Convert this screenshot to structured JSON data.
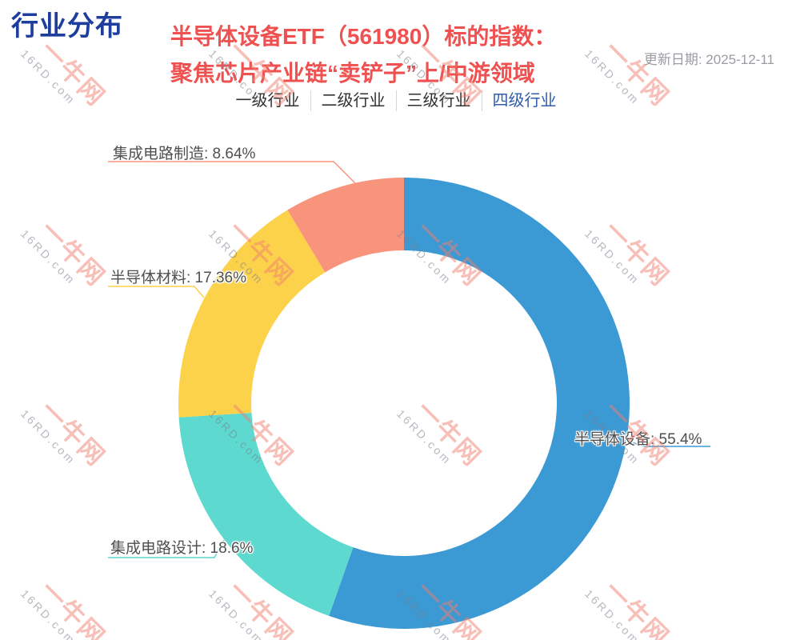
{
  "page": {
    "title": "行业分布",
    "subtitle_line1": "半导体设备ETF（561980）标的指数：",
    "subtitle_line2": "聚焦芯片产业链“卖铲子”上/中游领域",
    "update_date": "更新日期: 2025-12-11"
  },
  "tabs": {
    "items": [
      {
        "label": "一级行业",
        "active": false
      },
      {
        "label": "二级行业",
        "active": false
      },
      {
        "label": "三级行业",
        "active": false
      },
      {
        "label": "四级行业",
        "active": true
      }
    ],
    "active_color": "#2f5cad"
  },
  "chart_data": {
    "type": "pie",
    "title": "行业分布",
    "donut": true,
    "start_angle_deg": 0,
    "direction": "clockwise",
    "inner_radius_ratio": 0.68,
    "legend_position": "none",
    "segments": [
      {
        "name": "半导体设备",
        "value": 55.4,
        "color": "#3b99d4",
        "label": "半导体设备: 55.4%"
      },
      {
        "name": "集成电路设计",
        "value": 18.6,
        "color": "#5dd9cf",
        "label": "集成电路设计: 18.6%"
      },
      {
        "name": "半导体材料",
        "value": 17.36,
        "color": "#fcd24b",
        "label": "半导体材料: 17.36%"
      },
      {
        "name": "集成电路制造",
        "value": 8.64,
        "color": "#f9947c",
        "label": "集成电路制造: 8.64%"
      }
    ]
  },
  "watermark": {
    "brand": "一牛网",
    "domain": "16RD.com"
  }
}
